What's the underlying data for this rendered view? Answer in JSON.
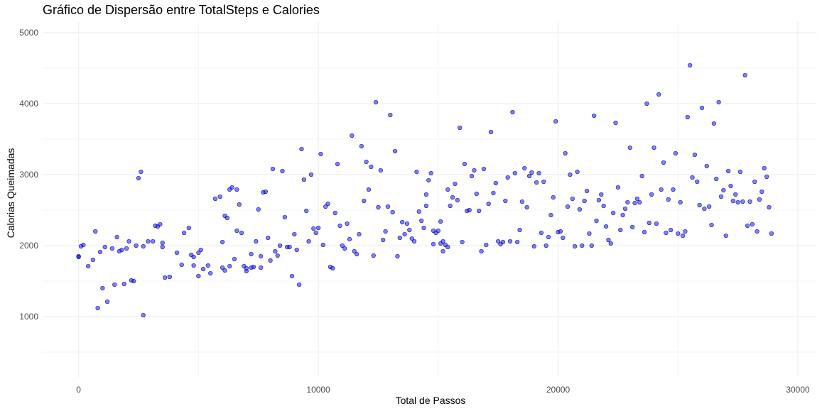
{
  "chart_data": {
    "type": "scatter",
    "title": "Gráfico de Dispersão entre TotalSteps e Calories",
    "xlabel": "Total de Passos",
    "ylabel": "Calorias Queimadas",
    "xlim": [
      -1500,
      30800
    ],
    "ylim": [
      150,
      5150
    ],
    "x_ticks": [
      0,
      10000,
      20000,
      30000
    ],
    "y_ticks": [
      1000,
      2000,
      3000,
      4000,
      5000
    ],
    "x_tick_labels": [
      "0",
      "10000",
      "20000",
      "30000"
    ],
    "y_tick_labels": [
      "1000",
      "2000",
      "3000",
      "4000",
      "5000"
    ],
    "grid": true,
    "legend": "none",
    "point_color": "#0000ff",
    "point_stroke": "#00008b",
    "point_opacity": 0.5,
    "points": [
      [
        0,
        1850
      ],
      [
        0,
        1840
      ],
      [
        100,
        1990
      ],
      [
        200,
        2010
      ],
      [
        400,
        1710
      ],
      [
        600,
        1800
      ],
      [
        700,
        2200
      ],
      [
        800,
        1120
      ],
      [
        900,
        1910
      ],
      [
        1000,
        1400
      ],
      [
        1100,
        1980
      ],
      [
        1200,
        1210
      ],
      [
        1400,
        1960
      ],
      [
        1500,
        1450
      ],
      [
        1600,
        2120
      ],
      [
        1700,
        1920
      ],
      [
        1800,
        1940
      ],
      [
        1900,
        1460
      ],
      [
        2000,
        1960
      ],
      [
        2100,
        2060
      ],
      [
        2200,
        1510
      ],
      [
        2300,
        1500
      ],
      [
        2400,
        2000
      ],
      [
        2500,
        2950
      ],
      [
        2600,
        3040
      ],
      [
        2700,
        1020
      ],
      [
        2700,
        1990
      ],
      [
        2900,
        2060
      ],
      [
        3100,
        2060
      ],
      [
        3200,
        2280
      ],
      [
        3300,
        2270
      ],
      [
        3400,
        2300
      ],
      [
        3500,
        2040
      ],
      [
        3500,
        1980
      ],
      [
        3600,
        1550
      ],
      [
        3800,
        1560
      ],
      [
        4100,
        1900
      ],
      [
        4300,
        1730
      ],
      [
        4400,
        2180
      ],
      [
        4600,
        2250
      ],
      [
        4700,
        1870
      ],
      [
        4800,
        1840
      ],
      [
        4800,
        1720
      ],
      [
        5000,
        1900
      ],
      [
        5000,
        1570
      ],
      [
        5100,
        1940
      ],
      [
        5200,
        1670
      ],
      [
        5400,
        1720
      ],
      [
        5500,
        1610
      ],
      [
        5700,
        2660
      ],
      [
        5900,
        2690
      ],
      [
        6000,
        1690
      ],
      [
        6000,
        2050
      ],
      [
        6100,
        1650
      ],
      [
        6100,
        2420
      ],
      [
        6200,
        2390
      ],
      [
        6300,
        2790
      ],
      [
        6300,
        1710
      ],
      [
        6400,
        2820
      ],
      [
        6500,
        1810
      ],
      [
        6600,
        2790
      ],
      [
        6600,
        2210
      ],
      [
        6700,
        2580
      ],
      [
        6800,
        2180
      ],
      [
        6900,
        1710
      ],
      [
        7000,
        1680
      ],
      [
        7000,
        1640
      ],
      [
        7200,
        1690
      ],
      [
        7200,
        1880
      ],
      [
        7300,
        1700
      ],
      [
        7400,
        2060
      ],
      [
        7500,
        2510
      ],
      [
        7600,
        1690
      ],
      [
        7600,
        1850
      ],
      [
        7700,
        2750
      ],
      [
        7800,
        2760
      ],
      [
        7900,
        2110
      ],
      [
        8000,
        1790
      ],
      [
        8100,
        3080
      ],
      [
        8200,
        1920
      ],
      [
        8300,
        1860
      ],
      [
        8400,
        2000
      ],
      [
        8500,
        3050
      ],
      [
        8600,
        2400
      ],
      [
        8700,
        1980
      ],
      [
        8800,
        1980
      ],
      [
        8900,
        1570
      ],
      [
        9000,
        2160
      ],
      [
        9100,
        1940
      ],
      [
        9200,
        1450
      ],
      [
        9300,
        3360
      ],
      [
        9400,
        2930
      ],
      [
        9500,
        2490
      ],
      [
        9600,
        2060
      ],
      [
        9700,
        3000
      ],
      [
        9800,
        2240
      ],
      [
        9900,
        2180
      ],
      [
        10000,
        2250
      ],
      [
        10100,
        3290
      ],
      [
        10200,
        2010
      ],
      [
        10300,
        2550
      ],
      [
        10400,
        2590
      ],
      [
        10500,
        1700
      ],
      [
        10600,
        1680
      ],
      [
        10700,
        2460
      ],
      [
        10800,
        3150
      ],
      [
        10900,
        2280
      ],
      [
        11000,
        2000
      ],
      [
        11100,
        1960
      ],
      [
        11200,
        2310
      ],
      [
        11300,
        2090
      ],
      [
        11400,
        3550
      ],
      [
        11500,
        1920
      ],
      [
        11600,
        1880
      ],
      [
        11700,
        2160
      ],
      [
        11800,
        3400
      ],
      [
        11900,
        2630
      ],
      [
        12000,
        3180
      ],
      [
        12100,
        2790
      ],
      [
        12200,
        3110
      ],
      [
        12300,
        1860
      ],
      [
        12400,
        4020
      ],
      [
        12500,
        2540
      ],
      [
        12600,
        3060
      ],
      [
        12700,
        2080
      ],
      [
        12800,
        2200
      ],
      [
        12900,
        2550
      ],
      [
        13000,
        3840
      ],
      [
        13100,
        2470
      ],
      [
        13200,
        3330
      ],
      [
        13300,
        1850
      ],
      [
        13400,
        2110
      ],
      [
        13500,
        2330
      ],
      [
        13600,
        2160
      ],
      [
        13700,
        2310
      ],
      [
        13800,
        2220
      ],
      [
        13900,
        2100
      ],
      [
        14000,
        2060
      ],
      [
        14100,
        3040
      ],
      [
        14200,
        2480
      ],
      [
        14300,
        2350
      ],
      [
        14400,
        2250
      ],
      [
        14500,
        2560
      ],
      [
        14500,
        2720
      ],
      [
        14600,
        2920
      ],
      [
        14700,
        3020
      ],
      [
        14800,
        2210
      ],
      [
        14800,
        2020
      ],
      [
        14900,
        2180
      ],
      [
        15000,
        2210
      ],
      [
        15100,
        2030
      ],
      [
        15100,
        2340
      ],
      [
        15200,
        1920
      ],
      [
        15200,
        2060
      ],
      [
        15300,
        2010
      ],
      [
        15400,
        1980
      ],
      [
        15400,
        2790
      ],
      [
        15500,
        2560
      ],
      [
        15600,
        2680
      ],
      [
        15700,
        2870
      ],
      [
        15800,
        2640
      ],
      [
        15900,
        3660
      ],
      [
        16000,
        2050
      ],
      [
        16100,
        3150
      ],
      [
        16200,
        2490
      ],
      [
        16300,
        2500
      ],
      [
        16400,
        2980
      ],
      [
        16500,
        3060
      ],
      [
        16600,
        2730
      ],
      [
        16700,
        2490
      ],
      [
        16800,
        1920
      ],
      [
        16900,
        3080
      ],
      [
        17000,
        2010
      ],
      [
        17100,
        2590
      ],
      [
        17200,
        3600
      ],
      [
        17300,
        2740
      ],
      [
        17400,
        2880
      ],
      [
        17500,
        2060
      ],
      [
        17600,
        2020
      ],
      [
        17700,
        2050
      ],
      [
        17800,
        2630
      ],
      [
        17900,
        2960
      ],
      [
        18000,
        2060
      ],
      [
        18100,
        3880
      ],
      [
        18200,
        3020
      ],
      [
        18300,
        2050
      ],
      [
        18400,
        2220
      ],
      [
        18500,
        2620
      ],
      [
        18600,
        3090
      ],
      [
        18700,
        2540
      ],
      [
        18800,
        2980
      ],
      [
        18900,
        3030
      ],
      [
        19000,
        1990
      ],
      [
        19100,
        2890
      ],
      [
        19200,
        3020
      ],
      [
        19300,
        2180
      ],
      [
        19400,
        2900
      ],
      [
        19500,
        2000
      ],
      [
        19600,
        2120
      ],
      [
        19700,
        2430
      ],
      [
        19800,
        2680
      ],
      [
        19900,
        3750
      ],
      [
        20000,
        2190
      ],
      [
        20100,
        2200
      ],
      [
        20200,
        2110
      ],
      [
        20300,
        3300
      ],
      [
        20400,
        2550
      ],
      [
        20500,
        3000
      ],
      [
        20600,
        2660
      ],
      [
        20700,
        1990
      ],
      [
        20800,
        3040
      ],
      [
        20900,
        2510
      ],
      [
        21000,
        2000
      ],
      [
        21100,
        2630
      ],
      [
        21200,
        2770
      ],
      [
        21300,
        2170
      ],
      [
        21400,
        2000
      ],
      [
        21500,
        3830
      ],
      [
        21600,
        2350
      ],
      [
        21700,
        2640
      ],
      [
        21800,
        2720
      ],
      [
        21900,
        2560
      ],
      [
        22000,
        2270
      ],
      [
        22100,
        2080
      ],
      [
        22200,
        2030
      ],
      [
        22300,
        2460
      ],
      [
        22400,
        3730
      ],
      [
        22500,
        2820
      ],
      [
        22600,
        2220
      ],
      [
        22700,
        2430
      ],
      [
        22800,
        2520
      ],
      [
        22900,
        2610
      ],
      [
        23000,
        3380
      ],
      [
        23100,
        2260
      ],
      [
        23200,
        2600
      ],
      [
        23300,
        2660
      ],
      [
        23400,
        2610
      ],
      [
        23500,
        2980
      ],
      [
        23600,
        2190
      ],
      [
        23700,
        4000
      ],
      [
        23800,
        2320
      ],
      [
        23900,
        2720
      ],
      [
        24000,
        3380
      ],
      [
        24100,
        2310
      ],
      [
        24200,
        4130
      ],
      [
        24300,
        2790
      ],
      [
        24400,
        3170
      ],
      [
        24500,
        2180
      ],
      [
        24600,
        2650
      ],
      [
        24700,
        2220
      ],
      [
        24800,
        2790
      ],
      [
        24900,
        3300
      ],
      [
        25000,
        2170
      ],
      [
        25100,
        2610
      ],
      [
        25200,
        2140
      ],
      [
        25300,
        2200
      ],
      [
        25400,
        3810
      ],
      [
        25500,
        4540
      ],
      [
        25600,
        2960
      ],
      [
        25700,
        3280
      ],
      [
        25800,
        2900
      ],
      [
        25900,
        2570
      ],
      [
        26000,
        3940
      ],
      [
        26100,
        2520
      ],
      [
        26200,
        3120
      ],
      [
        26300,
        2550
      ],
      [
        26400,
        2290
      ],
      [
        26500,
        3720
      ],
      [
        26600,
        2940
      ],
      [
        26700,
        4020
      ],
      [
        26800,
        2690
      ],
      [
        26900,
        2780
      ],
      [
        27000,
        2140
      ],
      [
        27100,
        3050
      ],
      [
        27200,
        2840
      ],
      [
        27300,
        2630
      ],
      [
        27400,
        2720
      ],
      [
        27500,
        2610
      ],
      [
        27600,
        3040
      ],
      [
        27700,
        2620
      ],
      [
        27800,
        4400
      ],
      [
        27900,
        2280
      ],
      [
        28000,
        2620
      ],
      [
        28100,
        2300
      ],
      [
        28200,
        2900
      ],
      [
        28300,
        2200
      ],
      [
        28400,
        2650
      ],
      [
        28500,
        2760
      ],
      [
        28600,
        3090
      ],
      [
        28700,
        2970
      ],
      [
        28800,
        2540
      ],
      [
        28900,
        2170
      ]
    ]
  }
}
